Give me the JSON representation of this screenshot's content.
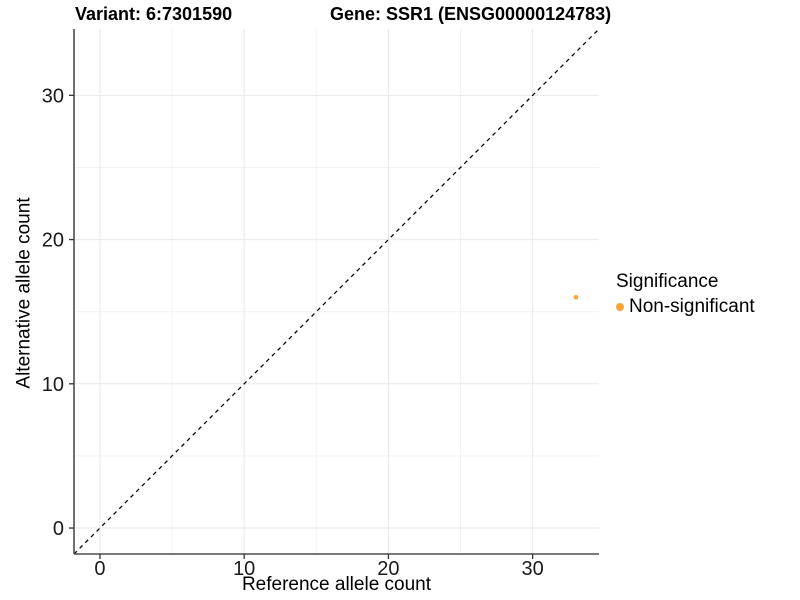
{
  "chart_data": {
    "type": "scatter",
    "title_left": "Variant: 6:7301590",
    "title_right": "Gene: SSR1 (ENSG00000124783)",
    "xlabel": "Reference allele count",
    "ylabel": "Alternative allele count",
    "xlim": [
      -1.8,
      34.6
    ],
    "ylim": [
      -1.8,
      34.6
    ],
    "xticks": [
      0,
      10,
      20,
      30
    ],
    "yticks": [
      0,
      10,
      20,
      30
    ],
    "minor_gridlines": [
      5,
      15,
      25
    ],
    "grid": "on",
    "identity_line": {
      "slope": 1,
      "intercept": 0,
      "style": "dashed",
      "color": "#000000"
    },
    "series": [
      {
        "name": "Non-significant",
        "color": "#FAA43A",
        "points": [
          {
            "x": 33,
            "y": 16
          }
        ]
      }
    ],
    "legend": {
      "title": "Significance",
      "position": "right",
      "items": [
        {
          "label": "Non-significant",
          "color": "#FAA43A"
        }
      ]
    },
    "colors": {
      "point": "#FAA43A",
      "grid_major": "#E9E9E9",
      "grid_minor": "#F3F3F3",
      "axis_line": "#4D4D4D",
      "tick_mark": "#333333",
      "tick_label": "#1A1A1A",
      "title_text": "#000000"
    }
  }
}
